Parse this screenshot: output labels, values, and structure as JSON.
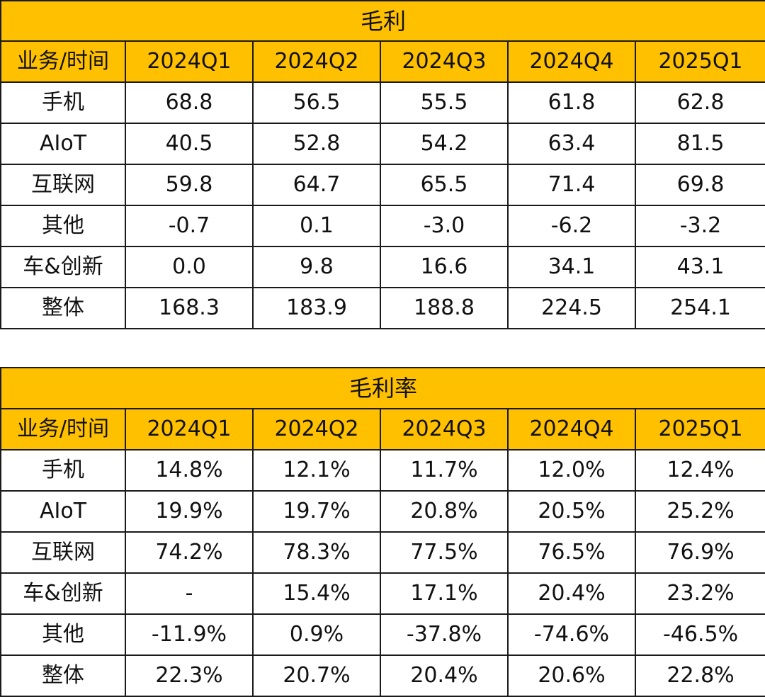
{
  "gross_profit": {
    "title": "毛利",
    "columns": [
      "业务/时间",
      "2024Q1",
      "2024Q2",
      "2024Q3",
      "2024Q4",
      "2025Q1"
    ],
    "rows": [
      [
        "手机",
        "68.8",
        "56.5",
        "55.5",
        "61.8",
        "62.8"
      ],
      [
        "AIoT",
        "40.5",
        "52.8",
        "54.2",
        "63.4",
        "81.5"
      ],
      [
        "互联网",
        "59.8",
        "64.7",
        "65.5",
        "71.4",
        "69.8"
      ],
      [
        "其他",
        "-0.7",
        "0.1",
        "-3.0",
        "-6.2",
        "-3.2"
      ],
      [
        "车&创新",
        "0.0",
        "9.8",
        "16.6",
        "34.1",
        "43.1"
      ],
      [
        "整体",
        "168.3",
        "183.9",
        "188.8",
        "224.5",
        "254.1"
      ]
    ]
  },
  "gross_margin": {
    "title": "毛利率",
    "columns": [
      "业务/时间",
      "2024Q1",
      "2024Q2",
      "2024Q3",
      "2024Q4",
      "2025Q1"
    ],
    "rows": [
      [
        "手机",
        "14.8%",
        "12.1%",
        "11.7%",
        "12.0%",
        "12.4%"
      ],
      [
        "AIoT",
        "19.9%",
        "19.7%",
        "20.8%",
        "20.5%",
        "25.2%"
      ],
      [
        "互联网",
        "74.2%",
        "78.3%",
        "77.5%",
        "76.5%",
        "76.9%"
      ],
      [
        "车&创新",
        "-",
        "15.4%",
        "17.1%",
        "20.4%",
        "23.2%"
      ],
      [
        "其他",
        "-11.9%",
        "0.9%",
        "-37.8%",
        "-74.6%",
        "-46.5%"
      ],
      [
        "整体",
        "22.3%",
        "20.7%",
        "20.4%",
        "20.6%",
        "22.8%"
      ]
    ]
  },
  "colors": {
    "header_fill": "#ffc000",
    "border": "#1a1a1a",
    "cell_fill": "#ffffff"
  }
}
